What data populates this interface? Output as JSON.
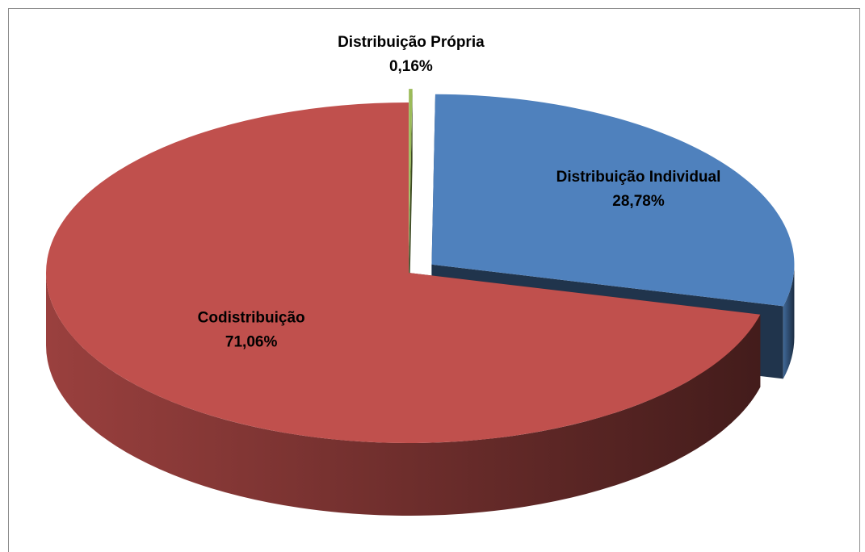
{
  "chart_data": {
    "type": "pie",
    "categories": [
      "Distribuição Própria",
      "Distribuição Individual",
      "Codistribuição"
    ],
    "values": [
      0.16,
      28.78,
      71.06
    ],
    "value_labels": [
      "0,16%",
      "28,78%",
      "71,06%"
    ],
    "colors": [
      "#9bbb59",
      "#4f81bd",
      "#c0504d"
    ]
  }
}
